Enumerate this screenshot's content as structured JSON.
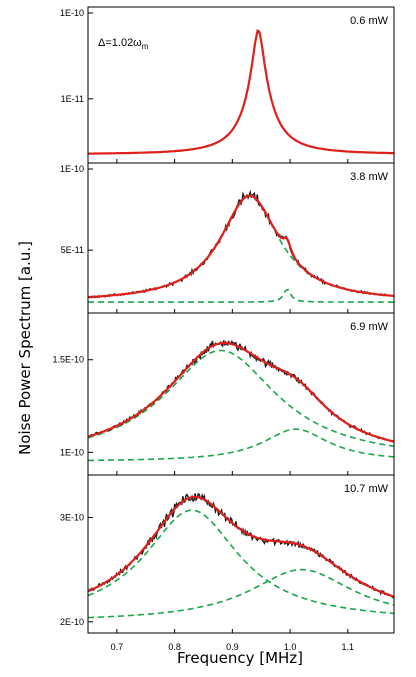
{
  "chart_data": {
    "type": "line",
    "xlabel": "Frequency [MHz]",
    "ylabel": "Noise Power Spectrum [a.u.]",
    "xlim": [
      0.65,
      1.18
    ],
    "x_ticks": [
      "0.7",
      "0.8",
      "0.9",
      "1.0",
      "1.1"
    ],
    "x_tick_values": [
      0.7,
      0.8,
      0.9,
      1.0,
      1.1
    ],
    "annotation": {
      "prefix": "Δ=1.02ω",
      "subscript": "m"
    },
    "colors": {
      "data": "#1a1a1a",
      "fit": "#e0201c",
      "components": "#1aa64a"
    },
    "panels": [
      {
        "power": "0.6 mW",
        "ylim": [
          2.1e-12,
          1e-10
        ],
        "log_scale": true,
        "y_ticks": [
          {
            "label": "1E-10",
            "value": 1e-10
          },
          {
            "label": "1E-11",
            "value": 1e-11
          }
        ],
        "baseline": 2.25e-12,
        "components": [
          {
            "center": 0.945,
            "width": 0.0085,
            "amplitude": 6.1e-11,
            "shown": false
          }
        ],
        "noise": 0.025
      },
      {
        "power": "3.8 mW",
        "ylim": [
          1.5e-11,
          1e-10
        ],
        "log_scale": false,
        "y_ticks": [
          {
            "label": "1E-10",
            "value": 1e-10
          },
          {
            "label": "5E-11",
            "value": 5e-11
          }
        ],
        "baseline": 1.8e-11,
        "components": [
          {
            "center": 0.93,
            "width": 0.062,
            "amplitude": 6.55e-11,
            "shown": true
          },
          {
            "center": 0.995,
            "width": 0.0075,
            "amplitude": 8e-12,
            "shown": true
          }
        ],
        "noise": 0.04
      },
      {
        "power": "6.9 mW",
        "ylim": [
          9.1e-11,
          1.72e-10
        ],
        "log_scale": false,
        "y_ticks": [
          {
            "label": "1.5E-10",
            "value": 1.5e-10
          },
          {
            "label": "1E-10",
            "value": 1e-10
          }
        ],
        "baseline": 9.5e-11,
        "components": [
          {
            "center": 0.88,
            "width": 0.12,
            "amplitude": 6e-11,
            "shown": true
          },
          {
            "center": 1.01,
            "width": 0.07,
            "amplitude": 1.75e-11,
            "shown": true
          }
        ],
        "noise": 0.028
      },
      {
        "power": "10.7 mW",
        "ylim": [
          1.95e-10,
          3.35e-10
        ],
        "log_scale": false,
        "y_ticks": [
          {
            "label": "3E-10",
            "value": 3e-10
          },
          {
            "label": "2E-10",
            "value": 2e-10
          }
        ],
        "baseline": 2e-10,
        "components": [
          {
            "center": 0.83,
            "width": 0.1,
            "amplitude": 1.07e-10,
            "shown": true
          },
          {
            "center": 1.02,
            "width": 0.11,
            "amplitude": 5e-11,
            "shown": true
          }
        ],
        "noise": 0.035
      }
    ]
  }
}
